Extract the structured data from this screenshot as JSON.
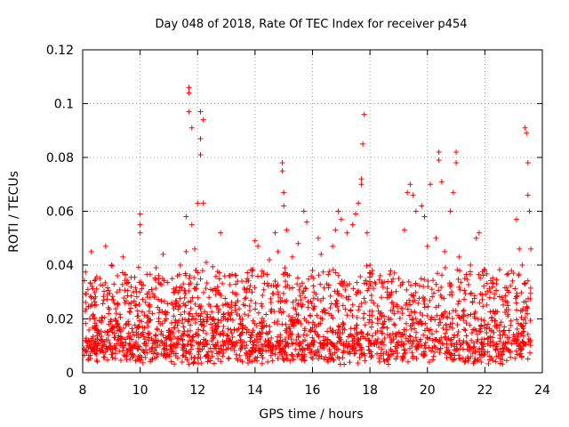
{
  "chart_data": {
    "type": "scatter",
    "title": "Day 048 of 2018, Rate Of TEC Index for receiver p454",
    "xlabel": "GPS time / hours",
    "ylabel": "ROTI / TECUs",
    "xlim": [
      8,
      24
    ],
    "ylim": [
      0,
      0.12
    ],
    "x_ticks": [
      8,
      10,
      12,
      14,
      16,
      18,
      20,
      22,
      24
    ],
    "x_tick_labels": [
      "8",
      "10",
      "12",
      "14",
      "16",
      "18",
      "20",
      "22",
      "24"
    ],
    "y_ticks": [
      0,
      0.02,
      0.04,
      0.06,
      0.08,
      0.1,
      0.12
    ],
    "y_tick_labels": [
      "0",
      "0.02",
      "0.04",
      "0.06",
      "0.08",
      "0.1",
      "0.12"
    ],
    "grid": true,
    "marker": "+",
    "series": [
      {
        "name": "ROTI",
        "color": "#ff0000",
        "points": [
          [
            8.1,
            0.008
          ],
          [
            8.2,
            0.012
          ],
          [
            8.3,
            0.045
          ],
          [
            8.3,
            0.028
          ],
          [
            8.4,
            0.02
          ],
          [
            8.5,
            0.015
          ],
          [
            8.6,
            0.035
          ],
          [
            8.7,
            0.01
          ],
          [
            8.8,
            0.047
          ],
          [
            8.9,
            0.022
          ],
          [
            9.0,
            0.04
          ],
          [
            9.1,
            0.013
          ],
          [
            9.2,
            0.03
          ],
          [
            9.3,
            0.016
          ],
          [
            9.4,
            0.043
          ],
          [
            9.5,
            0.011
          ],
          [
            9.6,
            0.018
          ],
          [
            9.7,
            0.009
          ],
          [
            9.8,
            0.014
          ],
          [
            9.9,
            0.021
          ],
          [
            10.0,
            0.059
          ],
          [
            10.0,
            0.055
          ],
          [
            10.0,
            0.052
          ],
          [
            10.1,
            0.015
          ],
          [
            10.2,
            0.01
          ],
          [
            10.3,
            0.012
          ],
          [
            10.4,
            0.009
          ],
          [
            10.5,
            0.028
          ],
          [
            10.6,
            0.016
          ],
          [
            10.7,
            0.033
          ],
          [
            10.8,
            0.044
          ],
          [
            10.9,
            0.02
          ],
          [
            11.0,
            0.015
          ],
          [
            11.1,
            0.026
          ],
          [
            11.2,
            0.03
          ],
          [
            11.3,
            0.036
          ],
          [
            11.4,
            0.04
          ],
          [
            11.5,
            0.033
          ],
          [
            11.6,
            0.045
          ],
          [
            11.6,
            0.058
          ],
          [
            11.7,
            0.097
          ],
          [
            11.7,
            0.106
          ],
          [
            11.7,
            0.104
          ],
          [
            11.8,
            0.091
          ],
          [
            11.8,
            0.055
          ],
          [
            11.9,
            0.046
          ],
          [
            11.95,
            0.038
          ],
          [
            12.0,
            0.063
          ],
          [
            12.1,
            0.087
          ],
          [
            12.1,
            0.081
          ],
          [
            12.1,
            0.097
          ],
          [
            12.2,
            0.094
          ],
          [
            12.2,
            0.063
          ],
          [
            12.3,
            0.041
          ],
          [
            12.4,
            0.028
          ],
          [
            12.5,
            0.02
          ],
          [
            12.7,
            0.032
          ],
          [
            12.8,
            0.052
          ],
          [
            12.9,
            0.014
          ],
          [
            13.1,
            0.036
          ],
          [
            13.3,
            0.025
          ],
          [
            13.5,
            0.018
          ],
          [
            13.7,
            0.03
          ],
          [
            13.9,
            0.038
          ],
          [
            14.0,
            0.049
          ],
          [
            14.1,
            0.047
          ],
          [
            14.3,
            0.037
          ],
          [
            14.5,
            0.042
          ],
          [
            14.7,
            0.052
          ],
          [
            14.8,
            0.045
          ],
          [
            14.95,
            0.078
          ],
          [
            14.95,
            0.075
          ],
          [
            15.0,
            0.067
          ],
          [
            15.0,
            0.062
          ],
          [
            15.1,
            0.053
          ],
          [
            15.3,
            0.043
          ],
          [
            15.5,
            0.048
          ],
          [
            15.7,
            0.06
          ],
          [
            15.8,
            0.056
          ],
          [
            16.0,
            0.038
          ],
          [
            16.2,
            0.05
          ],
          [
            16.3,
            0.044
          ],
          [
            16.5,
            0.033
          ],
          [
            16.7,
            0.047
          ],
          [
            16.8,
            0.053
          ],
          [
            16.9,
            0.06
          ],
          [
            17.0,
            0.057
          ],
          [
            17.2,
            0.052
          ],
          [
            17.4,
            0.055
          ],
          [
            17.5,
            0.059
          ],
          [
            17.6,
            0.063
          ],
          [
            17.7,
            0.072
          ],
          [
            17.7,
            0.07
          ],
          [
            17.75,
            0.085
          ],
          [
            17.8,
            0.096
          ],
          [
            17.9,
            0.052
          ],
          [
            18.0,
            0.04
          ],
          [
            18.2,
            0.033
          ],
          [
            18.4,
            0.028
          ],
          [
            18.6,
            0.03
          ],
          [
            18.8,
            0.026
          ],
          [
            19.0,
            0.035
          ],
          [
            19.2,
            0.053
          ],
          [
            19.3,
            0.067
          ],
          [
            19.4,
            0.07
          ],
          [
            19.5,
            0.066
          ],
          [
            19.6,
            0.06
          ],
          [
            19.8,
            0.062
          ],
          [
            19.9,
            0.058
          ],
          [
            20.0,
            0.047
          ],
          [
            20.1,
            0.07
          ],
          [
            20.3,
            0.05
          ],
          [
            20.4,
            0.079
          ],
          [
            20.4,
            0.082
          ],
          [
            20.5,
            0.071
          ],
          [
            20.6,
            0.045
          ],
          [
            20.8,
            0.06
          ],
          [
            20.9,
            0.067
          ],
          [
            21.0,
            0.078
          ],
          [
            21.0,
            0.082
          ],
          [
            21.1,
            0.043
          ],
          [
            21.3,
            0.035
          ],
          [
            21.5,
            0.04
          ],
          [
            21.7,
            0.05
          ],
          [
            21.8,
            0.052
          ],
          [
            22.0,
            0.038
          ],
          [
            22.2,
            0.03
          ],
          [
            22.4,
            0.033
          ],
          [
            22.6,
            0.028
          ],
          [
            22.8,
            0.025
          ],
          [
            23.0,
            0.037
          ],
          [
            23.1,
            0.057
          ],
          [
            23.2,
            0.046
          ],
          [
            23.3,
            0.04
          ],
          [
            23.4,
            0.091
          ],
          [
            23.45,
            0.089
          ],
          [
            23.5,
            0.078
          ],
          [
            23.5,
            0.066
          ],
          [
            23.55,
            0.06
          ],
          [
            23.6,
            0.046
          ]
        ]
      }
    ]
  }
}
